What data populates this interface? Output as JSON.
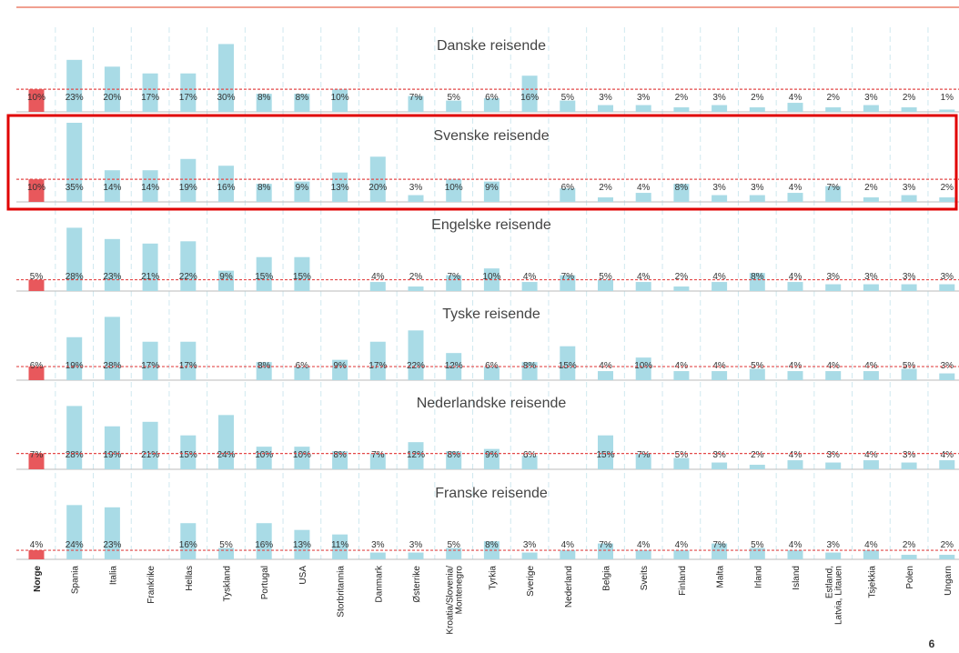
{
  "chart_data": {
    "type": "bar",
    "categories": [
      "Norge",
      "Spania",
      "Italia",
      "Frankrike",
      "Hellas",
      "Tyskland",
      "Portugal",
      "USA",
      "Storbritannia",
      "Danmark",
      "Østerrike",
      "Kroatia/Slovenia/Montenegro",
      "Tyrkia",
      "Sverige",
      "Nederland",
      "Belgia",
      "Sveits",
      "Finland",
      "Malta",
      "Irland",
      "Island",
      "Estland, Latvia, Litauen",
      "Tsjekkia",
      "Polen",
      "Ungarn"
    ],
    "ylim": [
      0,
      35
    ],
    "color": "#a9dbe6",
    "highlight_color": "#e8585c",
    "series": [
      {
        "name": "Danske reisende",
        "values": [
          10,
          23,
          20,
          17,
          17,
          30,
          8,
          8,
          10,
          null,
          7,
          5,
          6,
          16,
          5,
          3,
          3,
          2,
          3,
          2,
          4,
          2,
          3,
          2,
          1
        ],
        "value_labels": [
          "10%",
          "23%",
          "20%",
          "17%",
          "17%",
          "30%",
          "8%",
          "8%",
          "10%",
          null,
          "7%",
          "5%",
          "6%",
          "16%",
          "5%",
          "3%",
          "3%",
          "2%",
          "3%",
          "2%",
          "4%",
          "2%",
          "3%",
          "2%",
          "1%"
        ]
      },
      {
        "name": "Svenske reisende",
        "values": [
          10,
          35,
          14,
          14,
          19,
          16,
          8,
          9,
          13,
          20,
          3,
          10,
          9,
          null,
          6,
          2,
          4,
          8,
          3,
          3,
          4,
          7,
          2,
          3,
          2
        ],
        "value_labels": [
          "10%",
          "35%",
          "14%",
          "14%",
          "19%",
          "16%",
          "8%",
          "9%",
          "13%",
          "20%",
          "3%",
          "10%",
          "9%",
          null,
          "6%",
          "2%",
          "4%",
          "8%",
          "3%",
          "3%",
          "4%",
          "7%",
          "2%",
          "3%",
          "2%"
        ]
      },
      {
        "name": "Engelske reisende",
        "values": [
          5,
          28,
          23,
          21,
          22,
          9,
          15,
          15,
          null,
          4,
          2,
          7,
          10,
          4,
          7,
          5,
          4,
          2,
          4,
          8,
          4,
          3,
          3,
          3,
          3
        ],
        "value_labels": [
          "5%",
          "28%",
          "23%",
          "21%",
          "22%",
          "9%",
          "15%",
          "15%",
          null,
          "4%",
          "2%",
          "7%",
          "10%",
          "4%",
          "7%",
          "5%",
          "4%",
          "2%",
          "4%",
          "8%",
          "4%",
          "3%",
          "3%",
          "3%",
          "3%"
        ]
      },
      {
        "name": "Tyske reisende",
        "values": [
          6,
          19,
          28,
          17,
          17,
          null,
          8,
          6,
          9,
          17,
          22,
          12,
          6,
          8,
          15,
          4,
          10,
          4,
          4,
          5,
          4,
          4,
          4,
          5,
          3
        ],
        "value_labels": [
          "6%",
          "19%",
          "28%",
          "17%",
          "17%",
          null,
          "8%",
          "6%",
          "9%",
          "17%",
          "22%",
          "12%",
          "6%",
          "8%",
          "15%",
          "4%",
          "10%",
          "4%",
          "4%",
          "5%",
          "4%",
          "4%",
          "4%",
          "5%",
          "3%"
        ]
      },
      {
        "name": "Nederlandske reisende",
        "values": [
          7,
          28,
          19,
          21,
          15,
          24,
          10,
          10,
          8,
          7,
          12,
          8,
          9,
          6,
          null,
          15,
          7,
          5,
          3,
          2,
          4,
          3,
          4,
          3,
          4
        ],
        "value_labels": [
          "7%",
          "28%",
          "19%",
          "21%",
          "15%",
          "24%",
          "10%",
          "10%",
          "8%",
          "7%",
          "12%",
          "8%",
          "9%",
          "6%",
          null,
          "15%",
          "7%",
          "5%",
          "3%",
          "2%",
          "4%",
          "3%",
          "4%",
          "3%",
          "4%"
        ]
      },
      {
        "name": "Franske reisende",
        "values": [
          4,
          24,
          23,
          null,
          16,
          5,
          16,
          13,
          11,
          3,
          3,
          5,
          8,
          3,
          4,
          7,
          4,
          4,
          7,
          5,
          4,
          3,
          4,
          2,
          2
        ],
        "value_labels": [
          "4%",
          "24%",
          "23%",
          null,
          "16%",
          "5%",
          "16%",
          "13%",
          "11%",
          "3%",
          "3%",
          "5%",
          "8%",
          "3%",
          "4%",
          "7%",
          "4%",
          "4%",
          "7%",
          "5%",
          "4%",
          "3%",
          "4%",
          "2%",
          "2%"
        ]
      }
    ],
    "page_number": "6"
  }
}
